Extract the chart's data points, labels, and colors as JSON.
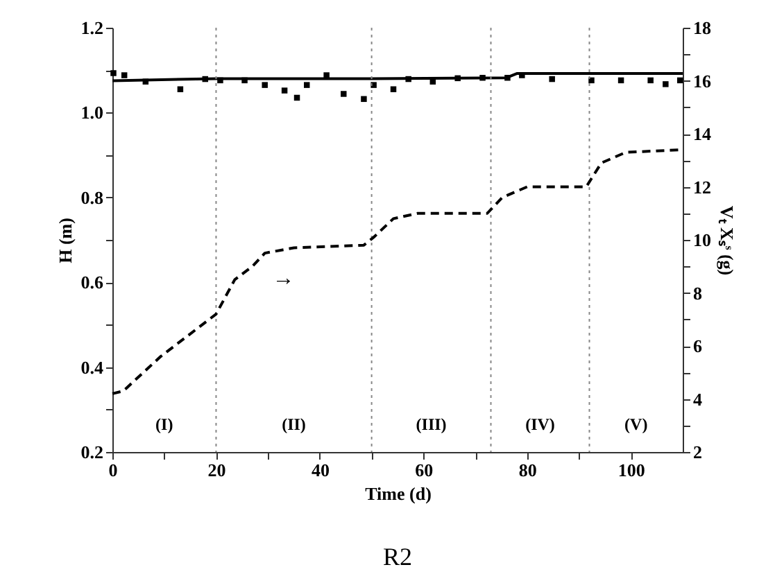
{
  "chart_data": {
    "type": "line",
    "xlabel": "Time  (d)",
    "ylabel": "H (m)",
    "y2label": "Vₜ Xₛˢ (g)",
    "xlim": [
      0,
      110
    ],
    "xticks": [
      0,
      {
        "value": 10,
        "label": null
      },
      20,
      {
        "value": 30,
        "label": null
      },
      40,
      {
        "value": 50,
        "label": null
      },
      60,
      {
        "value": 70,
        "label": null
      },
      80,
      {
        "value": 90,
        "label": null
      },
      100
    ],
    "ylim": [
      0.2,
      1.2
    ],
    "yticks": [
      0.2,
      {
        "value": 0.3,
        "label": null
      },
      0.4,
      {
        "value": 0.5,
        "label": null
      },
      0.6,
      {
        "value": 0.7,
        "label": null
      },
      0.8,
      {
        "value": 0.9,
        "label": null
      },
      {
        "value": 1.0,
        "label": "1.0"
      },
      {
        "value": 1.1,
        "label": null
      },
      1.2
    ],
    "y2lim": [
      2,
      18
    ],
    "y2ticks": [
      2,
      {
        "value": 3,
        "label": null
      },
      4,
      {
        "value": 5,
        "label": null
      },
      6,
      {
        "value": 7,
        "label": null
      },
      8,
      {
        "value": 9,
        "label": null
      },
      10,
      {
        "value": 11,
        "label": null
      },
      12,
      {
        "value": 13,
        "label": null
      },
      14,
      {
        "value": 15,
        "label": null
      },
      16,
      {
        "value": 17,
        "label": null
      },
      18
    ],
    "grid": false,
    "series": [
      {
        "type": "line",
        "color": "#000000",
        "line_style": "solid",
        "marker": "none",
        "x": [
          0,
          20,
          50,
          76,
          78,
          110
        ],
        "values": [
          1.075,
          1.08,
          1.08,
          1.082,
          1.092,
          1.092
        ]
      },
      {
        "type": "scatter",
        "color": "#000000",
        "marker": "square",
        "x": [
          0.2,
          2.3,
          6.4,
          13.1,
          17.9,
          20.8,
          25.5,
          29.4,
          33.2,
          35.6,
          37.5,
          41.3,
          44.6,
          48.5,
          50.4,
          54.2,
          57.1,
          61.8,
          66.6,
          71.4,
          76.2,
          79,
          84.8,
          92.4,
          98.1,
          103.8,
          106.7,
          109.5
        ],
        "values": [
          1.093,
          1.088,
          1.073,
          1.055,
          1.079,
          1.076,
          1.076,
          1.065,
          1.052,
          1.035,
          1.065,
          1.088,
          1.044,
          1.032,
          1.065,
          1.055,
          1.079,
          1.073,
          1.081,
          1.082,
          1.082,
          1.088,
          1.079,
          1.076,
          1.076,
          1.076,
          1.067,
          1.076
        ]
      },
      {
        "type": "line",
        "axis": "y2",
        "color": "#000000",
        "line_style": "dashed",
        "marker": "none",
        "x": [
          0,
          2.1,
          9.3,
          20,
          23.6,
          27,
          29.4,
          35,
          48.5,
          50.4,
          54.2,
          58.9,
          72.3,
          75.2,
          80,
          91.4,
          94.3,
          99,
          110
        ],
        "values": [
          4.2,
          4.3,
          5.6,
          7.2,
          8.5,
          9.0,
          9.5,
          9.7,
          9.8,
          10.1,
          10.8,
          11.0,
          11.0,
          11.6,
          12.0,
          12.0,
          12.9,
          13.3,
          13.4
        ]
      }
    ],
    "ref_lines": [
      {
        "axis": "x",
        "value": 20,
        "color": "#888888",
        "line_style": "dotted"
      },
      {
        "axis": "x",
        "value": 50,
        "color": "#888888",
        "line_style": "dotted"
      },
      {
        "axis": "x",
        "value": 73,
        "color": "#888888",
        "line_style": "dotted"
      },
      {
        "axis": "x",
        "value": 92,
        "color": "#888888",
        "line_style": "dotted"
      }
    ],
    "annotations": [
      "(I)",
      "(II)",
      "(III)",
      "(IV)",
      "(V)",
      "→",
      "R2"
    ]
  }
}
